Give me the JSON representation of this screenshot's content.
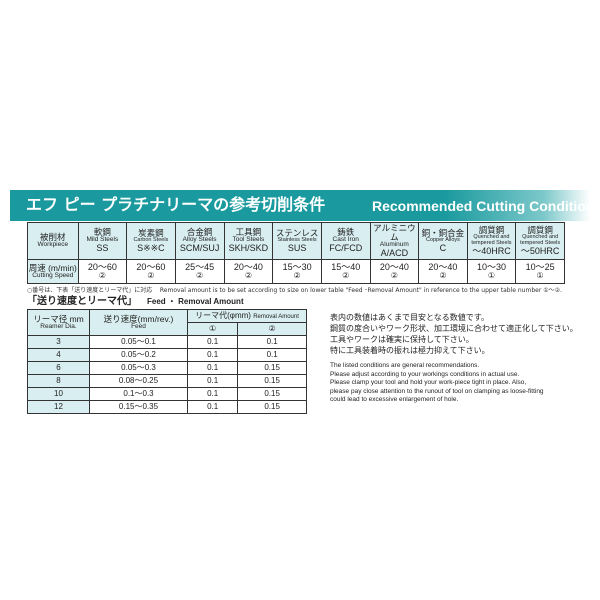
{
  "banner": {
    "title_jp": "エフ ピー プラチナリーマの参考切削条件",
    "title_en": "Recommended Cutting Conditions"
  },
  "cutting_table": {
    "row_label_workpiece": {
      "jp": "被削材",
      "en": "Workpiece"
    },
    "row_label_speed": {
      "jp": "周速 (m/min)",
      "en": "Cutting Speed"
    },
    "columns": [
      {
        "jp": "軟鋼",
        "en": "Mild Steels",
        "code": "SS",
        "speed": "20～60",
        "ref": "②"
      },
      {
        "jp": "炭素鋼",
        "en": "Carbon Steels",
        "code": "S※※C",
        "speed": "20～60",
        "ref": "②"
      },
      {
        "jp": "合金鋼",
        "en": "Alloy Steels",
        "code": "SCM/SUJ",
        "speed": "25～45",
        "ref": "②"
      },
      {
        "jp": "工具鋼",
        "en": "Tool Steels",
        "code": "SKH/SKD",
        "speed": "20～40",
        "ref": "②"
      },
      {
        "jp": "ステンレス",
        "en": "Stainless Steels",
        "code": "SUS",
        "speed": "15～30",
        "ref": "②"
      },
      {
        "jp": "鋳鉄",
        "en": "Cast Iron",
        "code": "FC/FCD",
        "speed": "15～40",
        "ref": "②"
      },
      {
        "jp": "アルミニウム",
        "en": "Aluminum",
        "code": "A/ACD",
        "speed": "20～40",
        "ref": "②"
      },
      {
        "jp": "銅・銅合金",
        "en": "Copper Alloys",
        "code": "C",
        "speed": "20～40",
        "ref": "②"
      },
      {
        "jp": "調質鋼",
        "en": "Quenched and tempered Steels",
        "code": "～40HRC",
        "speed": "10～30",
        "ref": "①"
      },
      {
        "jp": "調質鋼",
        "en": "Quenched and tempered Steels",
        "code": "～50HRC",
        "speed": "10～25",
        "ref": "①"
      }
    ]
  },
  "note": {
    "jp": "○番号は、下表「送り速度とリーマ代」に対応",
    "en": "Removal amount is to be set according to size on lower table \"Feed ･Removal Amount\" in reference to the upper table number ①～②."
  },
  "section": {
    "title_jp": "「送り速度とリーマ代」",
    "title_en": "Feed ・ Removal Amount"
  },
  "feed_table": {
    "h_dia_jp": "リーマ径 mm",
    "h_dia_en": "Reamer Dia.",
    "h_feed_jp": "送り速度(mm/rev.)",
    "h_feed_en": "Feed",
    "h_rem_jp": "リーマ代(φmm)",
    "h_rem_en": "Removal Amount",
    "h_r1": "①",
    "h_r2": "②",
    "rows": [
      {
        "dia": "3",
        "feed": "0.05～0.1",
        "r1": "0.1",
        "r2": "0.1"
      },
      {
        "dia": "4",
        "feed": "0.05～0.2",
        "r1": "0.1",
        "r2": "0.1"
      },
      {
        "dia": "6",
        "feed": "0.05～0.3",
        "r1": "0.1",
        "r2": "0.15"
      },
      {
        "dia": "8",
        "feed": "0.08～0.25",
        "r1": "0.1",
        "r2": "0.15"
      },
      {
        "dia": "10",
        "feed": "0.1～0.3",
        "r1": "0.1",
        "r2": "0.15"
      },
      {
        "dia": "12",
        "feed": "0.15～0.35",
        "r1": "0.1",
        "r2": "0.15"
      }
    ]
  },
  "notes_jp": [
    "表内の数値はあくまで目安となる数値です。",
    "鋼質の度合いやワーク形状、加工環境に合わせて適正化して下さい。",
    "工具やワークは確実に保持して下さい。",
    "特に工具装着時の振れは極力抑えて下さい。"
  ],
  "notes_en": [
    "The listed conditions are general recommendations.",
    "Please adjust according to your workings conditions in actual use.",
    "Please clamp your tool and hold your work-piece tight in place.  Also,",
    "please pay close attention to the runout of tool on clamping as loose-fitting",
    "could lead to excessive enlargement of hole."
  ]
}
